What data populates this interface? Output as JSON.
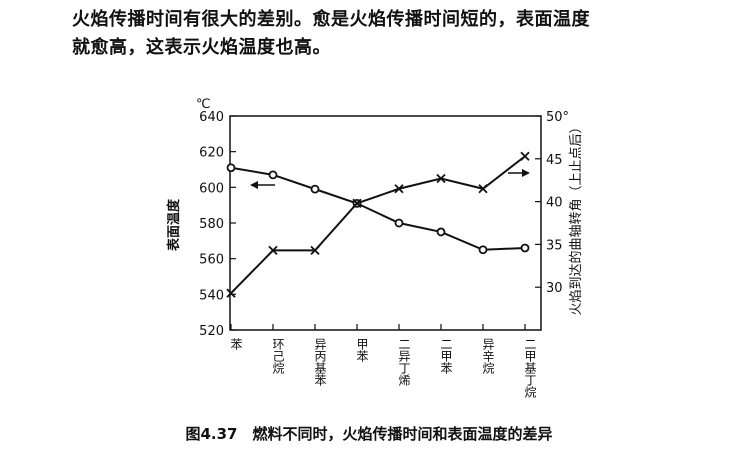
{
  "paragraph": {
    "line1": "火焰传播时间有很大的差别。愈是火焰传播时间短的，表面温度",
    "line2": "就愈高，这表示火焰温度也高。"
  },
  "caption": "图4.37　燃料不同时，火焰传播时间和表面温度的差异",
  "chart_data": {
    "type": "line",
    "categories": [
      "苯",
      "环己烷",
      "异丙基苯",
      "甲苯",
      "二异丁烯",
      "二甲苯",
      "异辛烷",
      "二甲基丁烷"
    ],
    "left_axis": {
      "label": "表面温度",
      "unit_label": "℃",
      "range": [
        520,
        640
      ],
      "ticks": [
        520,
        540,
        560,
        580,
        600,
        620,
        640
      ]
    },
    "right_axis": {
      "label": "火焰到达的曲轴转角（上止点后）",
      "unit_label": "50°",
      "range": [
        25,
        50
      ],
      "ticks": [
        30,
        35,
        40,
        45,
        50
      ],
      "tick_labels": [
        "30",
        "35",
        "40",
        "45",
        "50°"
      ]
    },
    "series": [
      {
        "axis": "left",
        "marker": "circle",
        "values": [
          611,
          607,
          599,
          591,
          580,
          575,
          565,
          566
        ],
        "arrow": "left"
      },
      {
        "axis": "right",
        "marker": "x",
        "values": [
          29.3,
          34.3,
          34.3,
          39.8,
          41.5,
          42.7,
          41.5,
          45.3
        ],
        "arrow": "right"
      }
    ]
  }
}
